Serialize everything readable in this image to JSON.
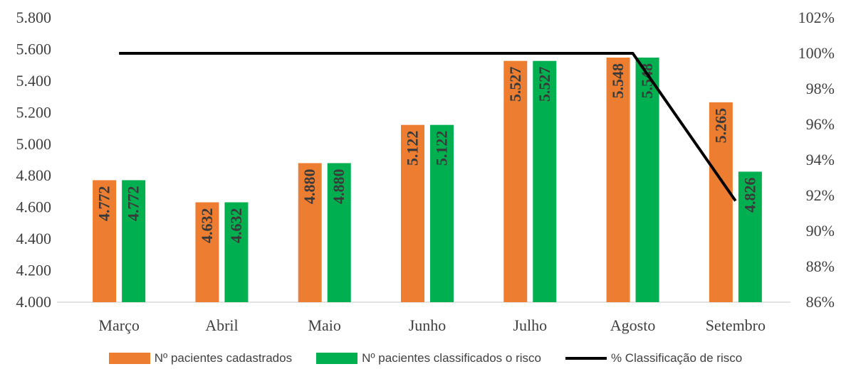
{
  "chart_data": {
    "type": "bar",
    "categories": [
      "Março",
      "Abril",
      "Maio",
      "Junho",
      "Julho",
      "Agosto",
      "Setembro"
    ],
    "series": [
      {
        "name": "Nº pacientes cadastrados",
        "type": "bar",
        "axis": "left",
        "color": "#ED7D31",
        "values": [
          4772,
          4632,
          4880,
          5122,
          5527,
          5548,
          5265
        ],
        "labels": [
          "4.772",
          "4.632",
          "4.880",
          "5.122",
          "5.527",
          "5.548",
          "5.265"
        ]
      },
      {
        "name": "Nº pacientes classificados o risco",
        "type": "bar",
        "axis": "left",
        "color": "#00B050",
        "values": [
          4772,
          4632,
          4880,
          5122,
          5527,
          5548,
          4826
        ],
        "labels": [
          "4.772",
          "4.632",
          "4.880",
          "5.122",
          "5.527",
          "5.548",
          "4.826"
        ]
      },
      {
        "name": "% Classificação de risco",
        "type": "line",
        "axis": "right",
        "color": "#000000",
        "values": [
          100,
          100,
          100,
          100,
          100,
          100,
          91.7
        ]
      }
    ],
    "y_left": {
      "min": 4000,
      "max": 5800,
      "step": 200,
      "ticks": [
        "4.000",
        "4.200",
        "4.400",
        "4.600",
        "4.800",
        "5.000",
        "5.200",
        "5.400",
        "5.600",
        "5.800"
      ]
    },
    "y_right": {
      "min": 86,
      "max": 102,
      "step": 2,
      "ticks": [
        "86%",
        "88%",
        "90%",
        "92%",
        "94%",
        "96%",
        "98%",
        "100%",
        "102%"
      ]
    },
    "grid": false,
    "legend_position": "bottom"
  },
  "legend": {
    "bar1": "Nº pacientes cadastrados",
    "bar2": "Nº pacientes classificados o risco",
    "line": "% Classificação de risco"
  }
}
